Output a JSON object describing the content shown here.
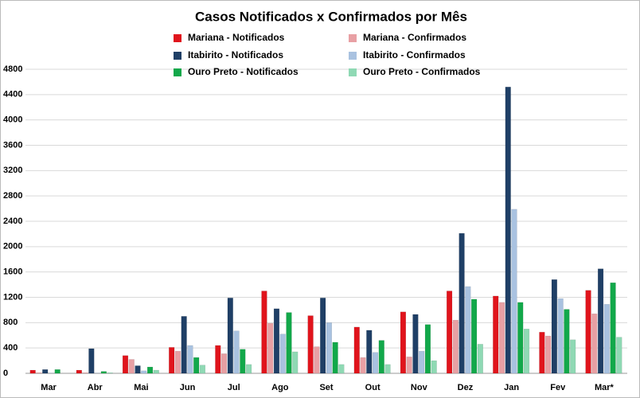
{
  "chart_data": {
    "type": "bar",
    "title": "Casos Notificados x Confirmados por Mês",
    "categories": [
      "Mar",
      "Abr",
      "Mai",
      "Jun",
      "Jul",
      "Ago",
      "Set",
      "Out",
      "Nov",
      "Dez",
      "Jan",
      "Fev",
      "Mar*"
    ],
    "series": [
      {
        "name": "Mariana - Notificados",
        "color": "#e0141c",
        "values": [
          50,
          50,
          280,
          410,
          440,
          1300,
          910,
          730,
          970,
          1300,
          1220,
          650,
          1310
        ]
      },
      {
        "name": "Mariana - Confirmados",
        "color": "#e8a0a4",
        "values": [
          10,
          10,
          220,
          350,
          310,
          790,
          420,
          250,
          260,
          840,
          1120,
          590,
          940
        ]
      },
      {
        "name": "Itabirito - Notificados",
        "color": "#1f3f66",
        "values": [
          60,
          390,
          120,
          900,
          1190,
          1020,
          1190,
          680,
          930,
          2210,
          4520,
          1480,
          1650
        ]
      },
      {
        "name": "Itabirito - Confirmados",
        "color": "#a9c2e0",
        "values": [
          5,
          5,
          40,
          440,
          670,
          620,
          800,
          330,
          350,
          1370,
          2590,
          1180,
          1090
        ]
      },
      {
        "name": "Ouro Preto - Notificados",
        "color": "#12a84a",
        "values": [
          60,
          30,
          100,
          250,
          380,
          960,
          490,
          520,
          770,
          1170,
          1120,
          1010,
          1430
        ]
      },
      {
        "name": "Ouro Preto - Confirmados",
        "color": "#8fd9b4",
        "values": [
          0,
          10,
          50,
          130,
          140,
          340,
          140,
          140,
          200,
          460,
          700,
          530,
          570
        ]
      }
    ],
    "ylim": [
      0,
      4800
    ],
    "yticks": [
      0,
      400,
      800,
      1200,
      1600,
      2000,
      2400,
      2800,
      3200,
      3600,
      4000,
      4400,
      4800
    ],
    "grid": true
  }
}
